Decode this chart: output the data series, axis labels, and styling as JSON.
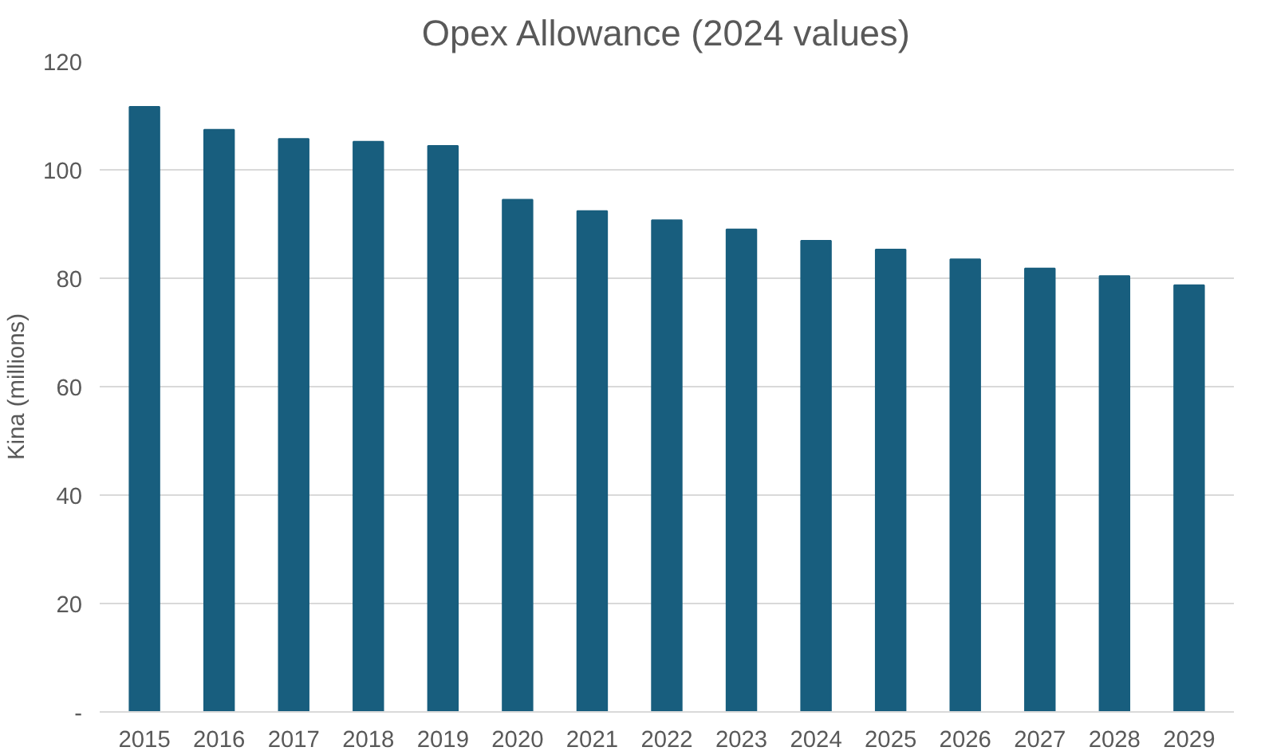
{
  "chart_data": {
    "type": "bar",
    "title": "Opex Allowance (2024 values)",
    "ylabel": "Kina (millions)",
    "categories": [
      "2015",
      "2016",
      "2017",
      "2018",
      "2019",
      "2020",
      "2021",
      "2022",
      "2023",
      "2024",
      "2025",
      "2026",
      "2027",
      "2028",
      "2029"
    ],
    "values": [
      111.6,
      107.4,
      105.7,
      105.2,
      104.4,
      94.5,
      92.4,
      90.7,
      89.0,
      86.9,
      85.3,
      83.5,
      81.8,
      80.4,
      78.7
    ],
    "color": "#185e7e",
    "ylim": [
      0,
      120
    ],
    "yticks": [
      {
        "value": 0,
        "label": "-"
      },
      20,
      40,
      60,
      80,
      100,
      120
    ],
    "grid": "y"
  }
}
